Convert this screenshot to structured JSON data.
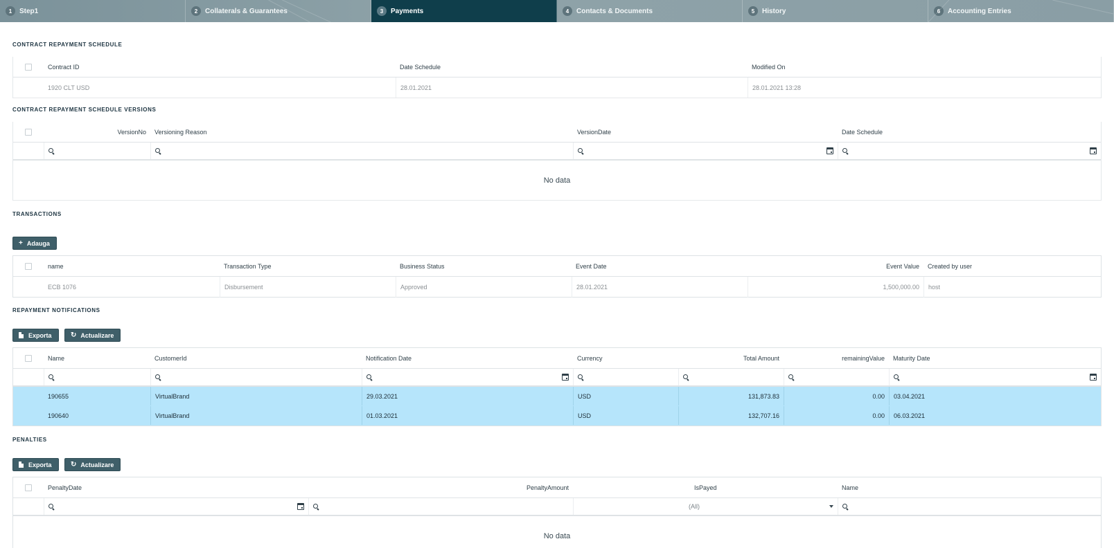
{
  "tabs": [
    {
      "num": "1",
      "label": "Step1"
    },
    {
      "num": "2",
      "label": "Collaterals & Guarantees"
    },
    {
      "num": "3",
      "label": "Payments"
    },
    {
      "num": "4",
      "label": "Contacts & Documents"
    },
    {
      "num": "5",
      "label": "History"
    },
    {
      "num": "6",
      "label": "Accounting Entries"
    }
  ],
  "schedule": {
    "title": "CONTRACT REPAYMENT SCHEDULE",
    "columns": [
      "Contract ID",
      "Date Schedule",
      "Modified On"
    ],
    "row": [
      "1920 CLT USD",
      "28.01.2021",
      "28.01.2021 13:28"
    ]
  },
  "versions": {
    "title": "CONTRACT REPAYMENT SCHEDULE VERSIONS",
    "columns": [
      "VersionNo",
      "Versioning Reason",
      "VersionDate",
      "Date Schedule"
    ],
    "empty": "No data"
  },
  "transactions": {
    "title": "TRANSACTIONS",
    "add_label": "Adauga",
    "columns": [
      "name",
      "Transaction Type",
      "Business Status",
      "Event Date",
      "Event Value",
      "Created by user"
    ],
    "row": [
      "ECB 1076",
      "Disbursement",
      "Approved",
      "28.01.2021",
      "1,500,000.00",
      "host"
    ]
  },
  "notifications": {
    "title": "REPAYMENT NOTIFICATIONS",
    "export_label": "Exporta",
    "refresh_label": "Actualizare",
    "columns": [
      "Name",
      "CustomerId",
      "Notification Date",
      "Currency",
      "Total Amount",
      "remainingValue",
      "Maturity Date"
    ],
    "rows": [
      [
        "190655",
        "VirtualBrand",
        "29.03.2021",
        "USD",
        "131,873.83",
        "0.00",
        "03.04.2021"
      ],
      [
        "190640",
        "VirtualBrand",
        "01.03.2021",
        "USD",
        "132,707.16",
        "0.00",
        "06.03.2021"
      ]
    ]
  },
  "penalties": {
    "title": "PENALTIES",
    "export_label": "Exporta",
    "refresh_label": "Actualizare",
    "columns": [
      "PenaltyDate",
      "PenaltyAmount",
      "IsPayed",
      "Name"
    ],
    "ispayed_filter": "(All)",
    "empty": "No data"
  },
  "colors": {
    "tab_active": "#0f3e4b",
    "button": "#3f5f69",
    "selected_row": "#b6e5fb"
  }
}
